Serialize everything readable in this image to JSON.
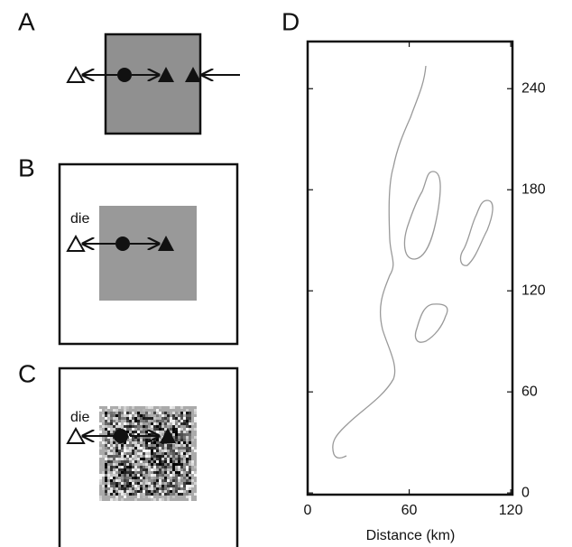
{
  "panels": [
    {
      "label": "A"
    },
    {
      "label": "B",
      "annotation": "die"
    },
    {
      "label": "C",
      "annotation": "die"
    },
    {
      "label": "D"
    }
  ],
  "chart_data": {
    "type": "contour",
    "xlabel": "Distance (km)",
    "xlim": [
      0,
      121
    ],
    "xticks": [
      0,
      60,
      120
    ],
    "ylim": [
      -1,
      268
    ],
    "yticks": [
      0,
      60,
      120,
      180,
      240
    ],
    "y_axis_side": "right",
    "color": "#999999"
  }
}
